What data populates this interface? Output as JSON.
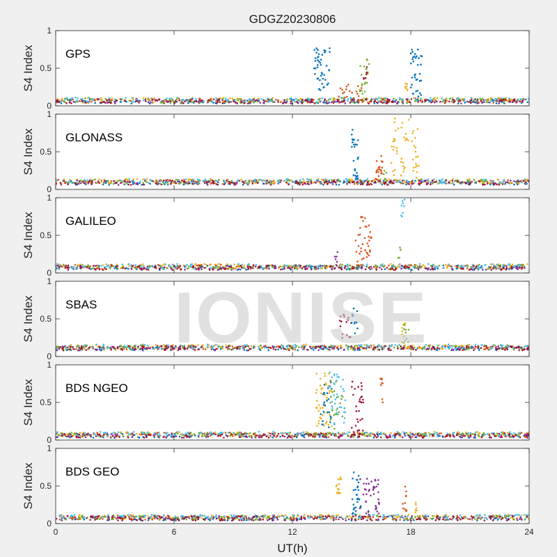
{
  "chart_data": {
    "title": "GDGZ20230806",
    "xlabel": "UT(h)",
    "ylabel": "S4 Index",
    "watermark": "IONISE",
    "type": "scatter",
    "xlim": [
      0,
      24
    ],
    "ylim": [
      0,
      1
    ],
    "x_ticks": [
      0,
      6,
      12,
      18,
      24
    ],
    "y_ticks": [
      0,
      0.5,
      1
    ],
    "colors": [
      "#0072bd",
      "#d95319",
      "#edb120",
      "#7e2f8e",
      "#77ac30",
      "#4dbeee",
      "#a2142f"
    ],
    "panels": [
      {
        "label": "GPS",
        "baseline": 0.07,
        "bursts": [
          {
            "x_start": 13.1,
            "x_end": 13.9,
            "y_min": 0.2,
            "y_max": 0.78,
            "color": "#0072bd",
            "count": 45
          },
          {
            "x_start": 14.3,
            "x_end": 15.6,
            "y_min": 0.08,
            "y_max": 0.3,
            "color": "#d95319",
            "count": 20
          },
          {
            "x_start": 15.4,
            "x_end": 15.9,
            "y_min": 0.15,
            "y_max": 0.62,
            "color": "#77ac30",
            "count": 20
          },
          {
            "x_start": 15.6,
            "x_end": 15.8,
            "y_min": 0.3,
            "y_max": 0.6,
            "color": "#a2142f",
            "count": 6
          },
          {
            "x_start": 17.7,
            "x_end": 17.9,
            "y_min": 0.15,
            "y_max": 0.3,
            "color": "#edb120",
            "count": 8
          },
          {
            "x_start": 18.0,
            "x_end": 18.6,
            "y_min": 0.1,
            "y_max": 0.75,
            "color": "#0072bd",
            "count": 35
          }
        ]
      },
      {
        "label": "GLONASS",
        "baseline": 0.1,
        "bursts": [
          {
            "x_start": 15.0,
            "x_end": 15.4,
            "y_min": 0.1,
            "y_max": 0.82,
            "color": "#0072bd",
            "count": 25
          },
          {
            "x_start": 16.2,
            "x_end": 16.6,
            "y_min": 0.1,
            "y_max": 0.45,
            "color": "#d95319",
            "count": 20
          },
          {
            "x_start": 17.0,
            "x_end": 18.4,
            "y_min": 0.15,
            "y_max": 0.95,
            "color": "#edb120",
            "count": 55
          },
          {
            "x_start": 16.6,
            "x_end": 16.9,
            "y_min": 0.1,
            "y_max": 0.25,
            "color": "#77ac30",
            "count": 6
          }
        ]
      },
      {
        "label": "GALILEO",
        "baseline": 0.08,
        "bursts": [
          {
            "x_start": 15.2,
            "x_end": 16.0,
            "y_min": 0.1,
            "y_max": 0.75,
            "color": "#d95319",
            "count": 40
          },
          {
            "x_start": 14.1,
            "x_end": 14.3,
            "y_min": 0.05,
            "y_max": 0.3,
            "color": "#7e2f8e",
            "count": 8
          },
          {
            "x_start": 17.5,
            "x_end": 17.7,
            "y_min": 0.75,
            "y_max": 1.0,
            "color": "#4dbeee",
            "count": 8
          },
          {
            "x_start": 17.3,
            "x_end": 17.5,
            "y_min": 0.2,
            "y_max": 0.35,
            "color": "#77ac30",
            "count": 5
          }
        ]
      },
      {
        "label": "SBAS",
        "baseline": 0.12,
        "bursts": [
          {
            "x_start": 14.4,
            "x_end": 15.0,
            "y_min": 0.2,
            "y_max": 0.6,
            "color": "#a2142f",
            "count": 15
          },
          {
            "x_start": 15.0,
            "x_end": 15.3,
            "y_min": 0.3,
            "y_max": 0.65,
            "color": "#0072bd",
            "count": 10
          },
          {
            "x_start": 17.6,
            "x_end": 17.9,
            "y_min": 0.15,
            "y_max": 0.45,
            "color": "#77ac30",
            "count": 10
          },
          {
            "x_start": 17.5,
            "x_end": 17.8,
            "y_min": 0.15,
            "y_max": 0.45,
            "color": "#edb120",
            "count": 8
          }
        ]
      },
      {
        "label": "BDS NGEO",
        "baseline": 0.07,
        "bursts": [
          {
            "x_start": 13.2,
            "x_end": 14.0,
            "y_min": 0.15,
            "y_max": 0.9,
            "color": "#edb120",
            "count": 45
          },
          {
            "x_start": 13.4,
            "x_end": 14.0,
            "y_min": 0.1,
            "y_max": 0.8,
            "color": "#0072bd",
            "count": 25
          },
          {
            "x_start": 13.9,
            "x_end": 14.7,
            "y_min": 0.15,
            "y_max": 0.9,
            "color": "#4dbeee",
            "count": 40
          },
          {
            "x_start": 13.9,
            "x_end": 14.6,
            "y_min": 0.15,
            "y_max": 0.9,
            "color": "#77ac30",
            "count": 20
          },
          {
            "x_start": 15.0,
            "x_end": 15.6,
            "y_min": 0.1,
            "y_max": 0.78,
            "color": "#a2142f",
            "count": 30
          },
          {
            "x_start": 16.4,
            "x_end": 16.6,
            "y_min": 0.4,
            "y_max": 0.9,
            "color": "#d95319",
            "count": 8
          }
        ]
      },
      {
        "label": "BDS GEO",
        "baseline": 0.08,
        "bursts": [
          {
            "x_start": 14.2,
            "x_end": 14.5,
            "y_min": 0.4,
            "y_max": 0.62,
            "color": "#edb120",
            "count": 15
          },
          {
            "x_start": 15.0,
            "x_end": 15.5,
            "y_min": 0.1,
            "y_max": 0.7,
            "color": "#0072bd",
            "count": 30
          },
          {
            "x_start": 15.4,
            "x_end": 16.4,
            "y_min": 0.1,
            "y_max": 0.6,
            "color": "#7e2f8e",
            "count": 40
          },
          {
            "x_start": 17.6,
            "x_end": 17.8,
            "y_min": 0.15,
            "y_max": 0.5,
            "color": "#d95319",
            "count": 10
          },
          {
            "x_start": 18.1,
            "x_end": 18.3,
            "y_min": 0.15,
            "y_max": 0.3,
            "color": "#edb120",
            "count": 6
          }
        ]
      }
    ]
  }
}
